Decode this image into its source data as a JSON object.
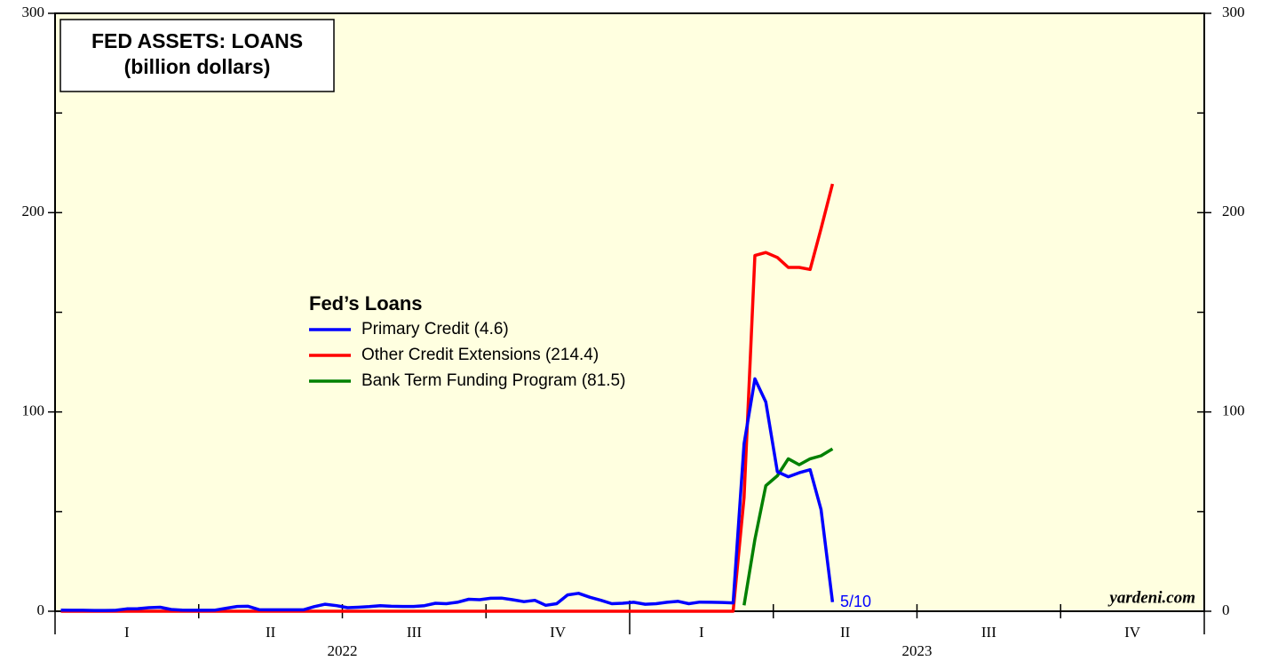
{
  "chart_data": {
    "type": "line",
    "title": "FED ASSETS: LOANS",
    "subtitle": "(billion dollars)",
    "legend_title": "Fed’s Loans",
    "annotations": [
      "5/10",
      "yardeni.com"
    ],
    "x": [
      2022.01,
      2022.029,
      2022.048,
      2022.068,
      2022.087,
      2022.106,
      2022.125,
      2022.144,
      2022.163,
      2022.183,
      2022.202,
      2022.221,
      2022.24,
      2022.259,
      2022.279,
      2022.298,
      2022.317,
      2022.336,
      2022.355,
      2022.374,
      2022.394,
      2022.413,
      2022.432,
      2022.451,
      2022.47,
      2022.49,
      2022.509,
      2022.528,
      2022.547,
      2022.566,
      2022.585,
      2022.605,
      2022.624,
      2022.643,
      2022.662,
      2022.681,
      2022.7,
      2022.72,
      2022.739,
      2022.758,
      2022.777,
      2022.796,
      2022.816,
      2022.835,
      2022.854,
      2022.873,
      2022.892,
      2022.911,
      2022.931,
      2022.95,
      2022.969,
      2022.988,
      2023.007,
      2023.027,
      2023.046,
      2023.065,
      2023.084,
      2023.103,
      2023.122,
      2023.142,
      2023.161,
      2023.18,
      2023.199,
      2023.218,
      2023.237,
      2023.257,
      2023.276,
      2023.295,
      2023.314,
      2023.333,
      2023.353
    ],
    "series": [
      {
        "name": "Primary Credit (4.6)",
        "color": "#0000ff",
        "values": [
          0.6,
          0.5,
          0.5,
          0.4,
          0.4,
          0.5,
          1.2,
          1.3,
          1.8,
          2.0,
          0.9,
          0.6,
          0.5,
          0.5,
          0.6,
          1.5,
          2.4,
          2.5,
          0.8,
          0.7,
          0.7,
          0.7,
          0.7,
          2.3,
          3.5,
          2.8,
          1.8,
          2.0,
          2.3,
          2.8,
          2.5,
          2.4,
          2.4,
          2.8,
          4.0,
          3.8,
          4.5,
          6.0,
          5.8,
          6.5,
          6.6,
          5.8,
          4.8,
          5.5,
          3.0,
          3.8,
          8.2,
          9.0,
          7.0,
          5.5,
          3.8,
          4.0,
          4.5,
          3.5,
          3.8,
          4.5,
          5.0,
          3.8,
          4.6,
          4.5,
          4.4,
          4.2,
          84,
          116.6,
          105,
          70,
          67.5,
          69.5,
          71,
          51,
          4.6
        ]
      },
      {
        "name": "Other Credit Extensions (214.4)",
        "color": "#ff0000",
        "values": [
          0,
          0,
          0,
          0,
          0,
          0,
          0,
          0,
          0,
          0,
          0,
          0,
          0,
          0,
          0,
          0,
          0,
          0,
          0,
          0,
          0,
          0,
          0,
          0,
          0,
          0,
          0,
          0,
          0,
          0,
          0,
          0,
          0,
          0,
          0,
          0,
          0,
          0,
          0,
          0,
          0,
          0,
          0,
          0,
          0,
          0,
          0,
          0,
          0,
          0,
          0,
          0,
          0,
          0,
          0,
          0,
          0,
          0,
          0,
          0,
          0,
          0,
          57,
          178.5,
          180,
          177.5,
          172.5,
          172.5,
          171.5,
          192,
          214.4
        ]
      },
      {
        "name": "Bank Term Funding Program (81.5)",
        "color": "#008000",
        "values": [
          null,
          null,
          null,
          null,
          null,
          null,
          null,
          null,
          null,
          null,
          null,
          null,
          null,
          null,
          null,
          null,
          null,
          null,
          null,
          null,
          null,
          null,
          null,
          null,
          null,
          null,
          null,
          null,
          null,
          null,
          null,
          null,
          null,
          null,
          null,
          null,
          null,
          null,
          null,
          null,
          null,
          null,
          null,
          null,
          null,
          null,
          null,
          null,
          null,
          null,
          null,
          null,
          null,
          null,
          null,
          null,
          null,
          null,
          null,
          null,
          null,
          null,
          3,
          36,
          63,
          68,
          76.5,
          73.5,
          76.5,
          78,
          81.5
        ]
      }
    ],
    "xlim": [
      2022,
      2024
    ],
    "xticks": [
      2022,
      2022.25,
      2022.5,
      2022.75,
      2023,
      2023.25,
      2023.5,
      2023.75,
      2024
    ],
    "quarter_labels": [
      {
        "value": 2022.125,
        "label": "I"
      },
      {
        "value": 2022.375,
        "label": "II"
      },
      {
        "value": 2022.625,
        "label": "III"
      },
      {
        "value": 2022.875,
        "label": "IV"
      },
      {
        "value": 2023.125,
        "label": "I"
      },
      {
        "value": 2023.375,
        "label": "II"
      },
      {
        "value": 2023.625,
        "label": "III"
      },
      {
        "value": 2023.875,
        "label": "IV"
      }
    ],
    "year_labels": [
      {
        "value": 2022.5,
        "label": "2022"
      },
      {
        "value": 2023.5,
        "label": "2023"
      }
    ],
    "ylim": [
      0,
      300
    ],
    "yticks": [
      0,
      100,
      200,
      300
    ],
    "yminorticks": [
      50,
      150,
      250
    ],
    "background": "#ffffe0"
  }
}
